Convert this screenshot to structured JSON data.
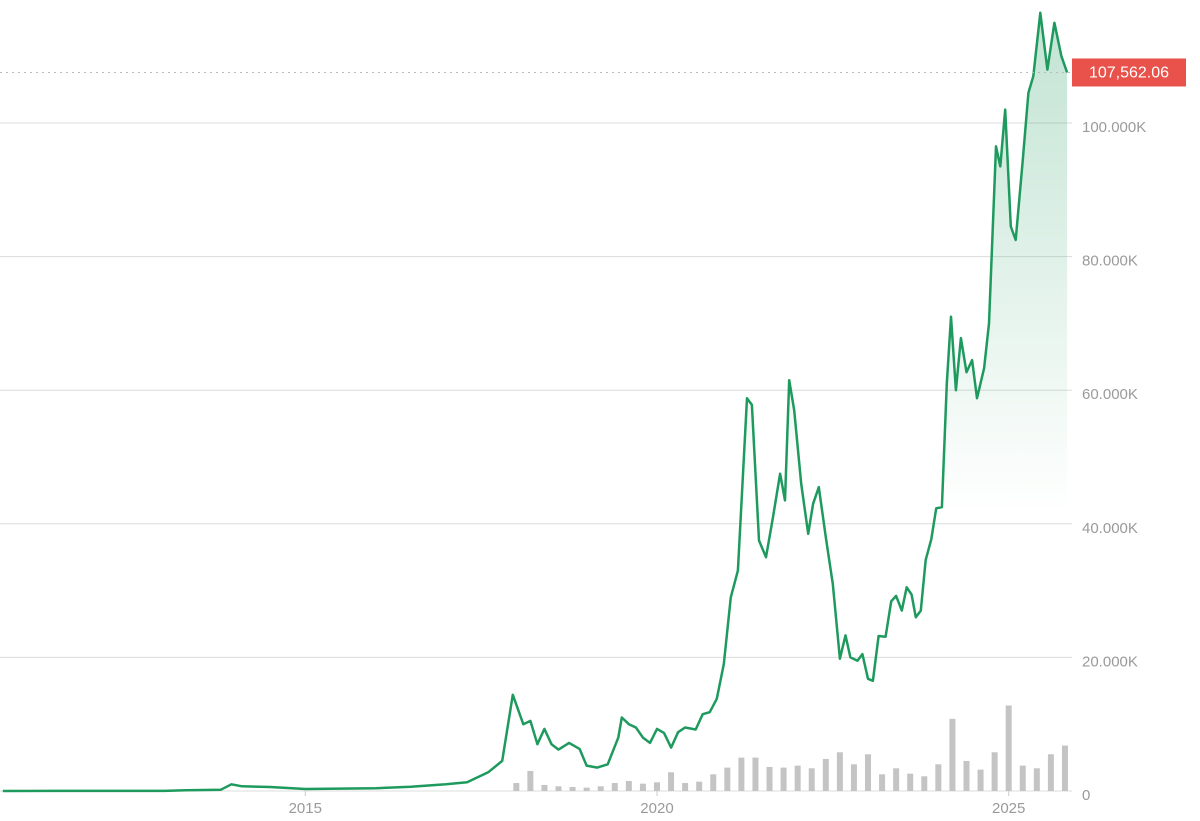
{
  "chart_data": {
    "type": "line",
    "x": [
      2010.7,
      2011.5,
      2013.0,
      2013.3,
      2013.8,
      2013.95,
      2014.1,
      2014.5,
      2015.0,
      2016.0,
      2016.5,
      2017.0,
      2017.3,
      2017.6,
      2017.8,
      2017.95,
      2018.1,
      2018.2,
      2018.3,
      2018.4,
      2018.5,
      2018.6,
      2018.75,
      2018.9,
      2019.0,
      2019.15,
      2019.3,
      2019.45,
      2019.5,
      2019.6,
      2019.7,
      2019.8,
      2019.9,
      2020.0,
      2020.1,
      2020.2,
      2020.3,
      2020.4,
      2020.55,
      2020.65,
      2020.75,
      2020.85,
      2020.95,
      2021.05,
      2021.15,
      2021.28,
      2021.35,
      2021.45,
      2021.55,
      2021.65,
      2021.75,
      2021.82,
      2021.88,
      2021.95,
      2022.05,
      2022.15,
      2022.22,
      2022.3,
      2022.4,
      2022.5,
      2022.6,
      2022.68,
      2022.75,
      2022.85,
      2022.92,
      2023.0,
      2023.07,
      2023.15,
      2023.25,
      2023.33,
      2023.4,
      2023.48,
      2023.55,
      2023.62,
      2023.68,
      2023.75,
      2023.82,
      2023.9,
      2023.97,
      2024.05,
      2024.12,
      2024.18,
      2024.25,
      2024.32,
      2024.4,
      2024.48,
      2024.55,
      2024.65,
      2024.72,
      2024.82,
      2024.88,
      2024.95,
      2025.03,
      2025.1,
      2025.2,
      2025.28,
      2025.35,
      2025.45,
      2025.55,
      2025.65,
      2025.75,
      2025.83
    ],
    "series": [
      {
        "color": "#1f9a5e",
        "values": [
          0,
          10,
          20,
          100,
          200,
          1000,
          700,
          600,
          300,
          400,
          650,
          1000,
          1300,
          2800,
          4500,
          14400,
          10000,
          10500,
          7000,
          9300,
          7000,
          6200,
          7200,
          6300,
          3800,
          3500,
          4000,
          8000,
          11000,
          10000,
          9500,
          8000,
          7200,
          9300,
          8700,
          6500,
          8800,
          9500,
          9200,
          11500,
          11800,
          13800,
          19000,
          29000,
          33000,
          58800,
          57800,
          37500,
          35000,
          41000,
          47500,
          43500,
          61500,
          57000,
          46000,
          38500,
          43000,
          45500,
          38000,
          31000,
          19800,
          23300,
          20000,
          19500,
          20500,
          16800,
          16500,
          23200,
          23100,
          28400,
          29200,
          27000,
          30500,
          29400,
          26000,
          27000,
          34600,
          37700,
          42300,
          42500,
          61000,
          71000,
          60000,
          67800,
          62700,
          64500,
          58800,
          63300,
          70000,
          96500,
          93500,
          102000,
          84500,
          82500,
          94500,
          104500,
          107000,
          116500,
          108000,
          115000,
          110000,
          107562.06
        ]
      }
    ],
    "volume": {
      "color": "#c4c4c4",
      "x": [
        2018.0,
        2018.2,
        2018.4,
        2018.6,
        2018.8,
        2019.0,
        2019.2,
        2019.4,
        2019.6,
        2019.8,
        2020.0,
        2020.2,
        2020.4,
        2020.6,
        2020.8,
        2021.0,
        2021.2,
        2021.4,
        2021.6,
        2021.8,
        2022.0,
        2022.2,
        2022.4,
        2022.6,
        2022.8,
        2023.0,
        2023.2,
        2023.4,
        2023.6,
        2023.8,
        2024.0,
        2024.2,
        2024.4,
        2024.6,
        2024.8,
        2025.0,
        2025.2,
        2025.4,
        2025.6,
        2025.8
      ],
      "values": [
        1200,
        3000,
        900,
        700,
        600,
        500,
        700,
        1200,
        1500,
        1100,
        1300,
        2800,
        1200,
        1400,
        2500,
        3500,
        5000,
        5000,
        3600,
        3500,
        3800,
        3400,
        4800,
        5800,
        4000,
        5500,
        2500,
        3400,
        2600,
        2200,
        4000,
        10800,
        4500,
        3200,
        5800,
        12800,
        3800,
        3400,
        5500,
        6800
      ]
    },
    "last_value": {
      "value": 107562.06,
      "label": "107,562.06"
    },
    "label_color": "#e8524a",
    "xlim": [
      2010.66,
      2025.9
    ],
    "xticks": [
      2015,
      2020,
      2025
    ],
    "ylim": [
      0,
      118500
    ],
    "yticks": [
      0,
      {
        "value": 20000,
        "label": "20.000K"
      },
      {
        "value": 40000,
        "label": "40.000K"
      },
      {
        "value": 60000,
        "label": "60.000K"
      },
      {
        "value": 80000,
        "label": "80.000K"
      },
      {
        "value": 100000,
        "label": "100.000K"
      }
    ],
    "grid": true
  }
}
